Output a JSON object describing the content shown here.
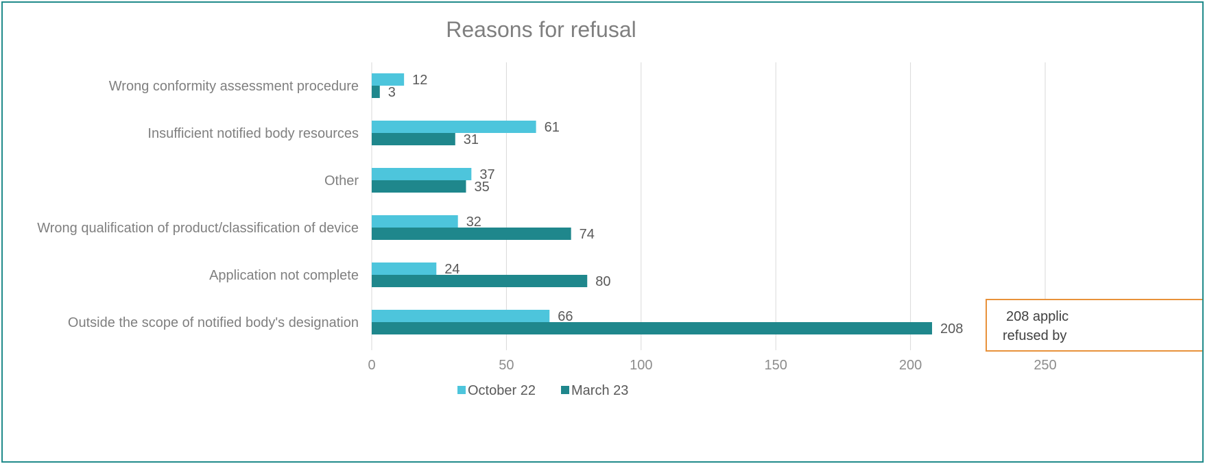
{
  "chart_data": {
    "type": "bar",
    "orientation": "horizontal",
    "title": "Reasons for refusal",
    "categories": [
      "Wrong conformity assessment procedure",
      "Insufficient notified body resources",
      "Other",
      "Wrong qualification of product/classification of device",
      "Application not complete",
      "Outside the scope of notified body's designation"
    ],
    "series": [
      {
        "name": "October 22",
        "color": "#4dc5dc",
        "values": [
          12,
          61,
          37,
          32,
          24,
          66
        ]
      },
      {
        "name": "March 23",
        "color": "#1f878c",
        "values": [
          3,
          31,
          35,
          74,
          80,
          208
        ]
      }
    ],
    "xlim": [
      0,
      250
    ],
    "xticks": [
      0,
      50,
      100,
      150,
      200,
      250
    ],
    "grid": true,
    "legend": "bottom",
    "annotation": {
      "lines": [
        "208 applic",
        "refused by"
      ],
      "border_color": "#e8913a"
    }
  }
}
